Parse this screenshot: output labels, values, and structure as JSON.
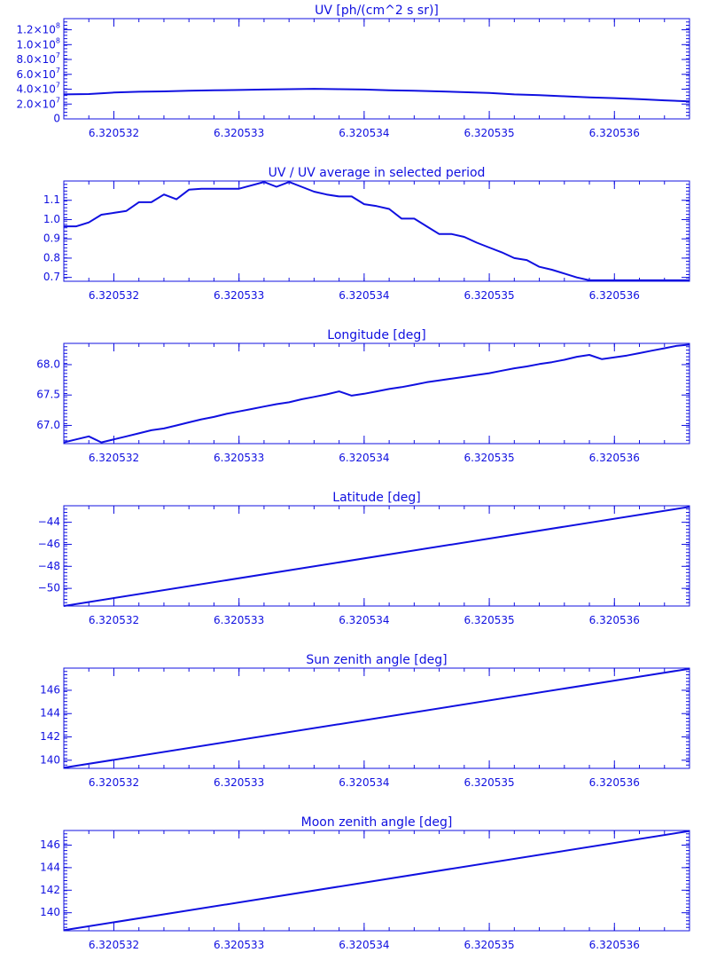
{
  "chart_data": [
    {
      "type": "line",
      "title": "UV [ph/(cm^2 s sr)]",
      "xlim": [
        6.3205316,
        6.3205366
      ],
      "ylim": [
        0,
        135000000.0
      ],
      "xticks": [
        "6.320532",
        "6.320533",
        "6.320534",
        "6.320535",
        "6.320536"
      ],
      "xtick_values": [
        6.320532,
        6.320533,
        6.320534,
        6.320535,
        6.320536
      ],
      "yticks": [
        {
          "value": 0,
          "base": "0",
          "exp": ""
        },
        {
          "value": 20000000.0,
          "base": "2.0×10",
          "exp": "7"
        },
        {
          "value": 40000000.0,
          "base": "4.0×10",
          "exp": "7"
        },
        {
          "value": 60000000.0,
          "base": "6.0×10",
          "exp": "7"
        },
        {
          "value": 80000000.0,
          "base": "8.0×10",
          "exp": "7"
        },
        {
          "value": 100000000.0,
          "base": "1.0×10",
          "exp": "8"
        },
        {
          "value": 120000000.0,
          "base": "1.2×10",
          "exp": "8"
        }
      ],
      "series": [
        {
          "x": [
            6.3205316,
            6.3205318,
            6.320532,
            6.3205322,
            6.3205324,
            6.3205326,
            6.3205328,
            6.320533,
            6.3205332,
            6.3205334,
            6.3205336,
            6.3205338,
            6.320534,
            6.3205342,
            6.3205344,
            6.3205346,
            6.3205348,
            6.320535,
            6.3205352,
            6.3205354,
            6.3205356,
            6.3205358,
            6.320536,
            6.3205362,
            6.3205364,
            6.3205366
          ],
          "y": [
            33000000.0,
            33500000.0,
            35500000.0,
            36500000.0,
            37000000.0,
            38000000.0,
            38500000.0,
            39000000.0,
            39500000.0,
            40000000.0,
            40500000.0,
            40000000.0,
            39500000.0,
            38500000.0,
            38000000.0,
            37000000.0,
            36000000.0,
            35000000.0,
            33000000.0,
            32000000.0,
            30500000.0,
            29000000.0,
            28000000.0,
            26500000.0,
            25000000.0,
            23500000.0
          ]
        }
      ]
    },
    {
      "type": "line",
      "title": "UV / UV average in selected period",
      "xlim": [
        6.3205316,
        6.3205366
      ],
      "ylim": [
        0.68,
        1.2
      ],
      "xticks": [
        "6.320532",
        "6.320533",
        "6.320534",
        "6.320535",
        "6.320536"
      ],
      "xtick_values": [
        6.320532,
        6.320533,
        6.320534,
        6.320535,
        6.320536
      ],
      "yticks": [
        {
          "value": 0.7,
          "base": "0.7",
          "exp": ""
        },
        {
          "value": 0.8,
          "base": "0.8",
          "exp": ""
        },
        {
          "value": 0.9,
          "base": "0.9",
          "exp": ""
        },
        {
          "value": 1.0,
          "base": "1.0",
          "exp": ""
        },
        {
          "value": 1.1,
          "base": "1.1",
          "exp": ""
        }
      ],
      "series": [
        {
          "x": [
            6.3205316,
            6.3205317,
            6.3205318,
            6.3205319,
            6.320532,
            6.3205321,
            6.3205322,
            6.3205323,
            6.3205324,
            6.3205325,
            6.3205326,
            6.3205327,
            6.3205328,
            6.320533,
            6.3205332,
            6.3205333,
            6.3205334,
            6.3205335,
            6.3205336,
            6.3205337,
            6.3205338,
            6.3205339,
            6.320534,
            6.3205341,
            6.3205342,
            6.3205343,
            6.3205344,
            6.3205345,
            6.3205346,
            6.3205347,
            6.3205348,
            6.3205349,
            6.320535,
            6.3205351,
            6.3205352,
            6.3205353,
            6.3205354,
            6.3205355,
            6.3205356,
            6.3205357,
            6.3205358,
            6.3205359,
            6.320536,
            6.3205361,
            6.3205362,
            6.3205363,
            6.3205364,
            6.3205365,
            6.3205366
          ],
          "y": [
            0.965,
            0.965,
            0.985,
            1.025,
            1.035,
            1.045,
            1.09,
            1.09,
            1.13,
            1.105,
            1.155,
            1.16,
            1.16,
            1.16,
            1.195,
            1.17,
            1.195,
            1.17,
            1.145,
            1.13,
            1.12,
            1.12,
            1.08,
            1.07,
            1.055,
            1.005,
            1.005,
            0.965,
            0.925,
            0.925,
            0.91,
            0.88,
            0.855,
            0.83,
            0.8,
            0.79,
            0.755,
            0.74,
            0.72,
            0.7,
            0.685,
            0.685,
            0.685,
            0.685,
            0.685,
            0.685,
            0.685,
            0.685,
            0.685
          ]
        }
      ]
    },
    {
      "type": "line",
      "title": "Longitude [deg]",
      "xlim": [
        6.3205316,
        6.3205366
      ],
      "ylim": [
        66.7,
        68.35
      ],
      "xticks": [
        "6.320532",
        "6.320533",
        "6.320534",
        "6.320535",
        "6.320536"
      ],
      "xtick_values": [
        6.320532,
        6.320533,
        6.320534,
        6.320535,
        6.320536
      ],
      "yticks": [
        {
          "value": 67.0,
          "base": "67.0",
          "exp": ""
        },
        {
          "value": 67.5,
          "base": "67.5",
          "exp": ""
        },
        {
          "value": 68.0,
          "base": "68.0",
          "exp": ""
        }
      ],
      "series": [
        {
          "x": [
            6.3205316,
            6.3205317,
            6.3205318,
            6.3205319,
            6.320532,
            6.3205321,
            6.3205322,
            6.3205323,
            6.3205324,
            6.3205325,
            6.3205326,
            6.3205327,
            6.3205328,
            6.3205329,
            6.320533,
            6.3205331,
            6.3205332,
            6.3205333,
            6.3205334,
            6.3205335,
            6.3205336,
            6.3205337,
            6.3205338,
            6.3205339,
            6.320534,
            6.3205341,
            6.3205342,
            6.3205343,
            6.3205344,
            6.3205345,
            6.3205346,
            6.3205347,
            6.3205348,
            6.3205349,
            6.320535,
            6.3205351,
            6.3205352,
            6.3205353,
            6.3205354,
            6.3205355,
            6.3205356,
            6.3205357,
            6.3205358,
            6.3205359,
            6.320536,
            6.3205361,
            6.3205362,
            6.3205363,
            6.3205364,
            6.3205365,
            6.3205366
          ],
          "y": [
            66.72,
            66.77,
            66.82,
            66.72,
            66.77,
            66.82,
            66.87,
            66.92,
            66.95,
            67.0,
            67.05,
            67.1,
            67.14,
            67.19,
            67.23,
            67.27,
            67.31,
            67.35,
            67.38,
            67.43,
            67.47,
            67.51,
            67.56,
            67.49,
            67.52,
            67.56,
            67.6,
            67.63,
            67.67,
            67.71,
            67.74,
            67.77,
            67.8,
            67.83,
            67.86,
            67.9,
            67.94,
            67.97,
            68.01,
            68.04,
            68.08,
            68.13,
            68.16,
            68.09,
            68.12,
            68.15,
            68.19,
            68.23,
            68.27,
            68.31,
            68.33
          ]
        }
      ]
    },
    {
      "type": "line",
      "title": "Latitude [deg]",
      "xlim": [
        6.3205316,
        6.3205366
      ],
      "ylim": [
        -51.6,
        -42.5
      ],
      "xticks": [
        "6.320532",
        "6.320533",
        "6.320534",
        "6.320535",
        "6.320536"
      ],
      "xtick_values": [
        6.320532,
        6.320533,
        6.320534,
        6.320535,
        6.320536
      ],
      "yticks": [
        {
          "value": -50,
          "base": "−50",
          "exp": ""
        },
        {
          "value": -48,
          "base": "−48",
          "exp": ""
        },
        {
          "value": -46,
          "base": "−46",
          "exp": ""
        },
        {
          "value": -44,
          "base": "−44",
          "exp": ""
        }
      ],
      "series": [
        {
          "x": [
            6.3205316,
            6.3205366
          ],
          "y": [
            -51.6,
            -42.6
          ]
        }
      ]
    },
    {
      "type": "line",
      "title": "Sun zenith angle [deg]",
      "xlim": [
        6.3205316,
        6.3205366
      ],
      "ylim": [
        139.3,
        147.9
      ],
      "xticks": [
        "6.320532",
        "6.320533",
        "6.320534",
        "6.320535",
        "6.320536"
      ],
      "xtick_values": [
        6.320532,
        6.320533,
        6.320534,
        6.320535,
        6.320536
      ],
      "yticks": [
        {
          "value": 140,
          "base": "140",
          "exp": ""
        },
        {
          "value": 142,
          "base": "142",
          "exp": ""
        },
        {
          "value": 144,
          "base": "144",
          "exp": ""
        },
        {
          "value": 146,
          "base": "146",
          "exp": ""
        }
      ],
      "series": [
        {
          "x": [
            6.3205316,
            6.3205366
          ],
          "y": [
            139.35,
            147.85
          ]
        }
      ]
    },
    {
      "type": "line",
      "title": "Moon zenith angle [deg]",
      "xlim": [
        6.3205316,
        6.3205366
      ],
      "ylim": [
        138.4,
        147.3
      ],
      "xticks": [
        "6.320532",
        "6.320533",
        "6.320534",
        "6.320535",
        "6.320536"
      ],
      "xtick_values": [
        6.320532,
        6.320533,
        6.320534,
        6.320535,
        6.320536
      ],
      "yticks": [
        {
          "value": 140,
          "base": "140",
          "exp": ""
        },
        {
          "value": 142,
          "base": "142",
          "exp": ""
        },
        {
          "value": 144,
          "base": "144",
          "exp": ""
        },
        {
          "value": 146,
          "base": "146",
          "exp": ""
        }
      ],
      "series": [
        {
          "x": [
            6.3205316,
            6.3205366
          ],
          "y": [
            138.45,
            147.25
          ]
        }
      ]
    }
  ],
  "colors": {
    "ink": "#1010e0",
    "background": "#ffffff"
  }
}
